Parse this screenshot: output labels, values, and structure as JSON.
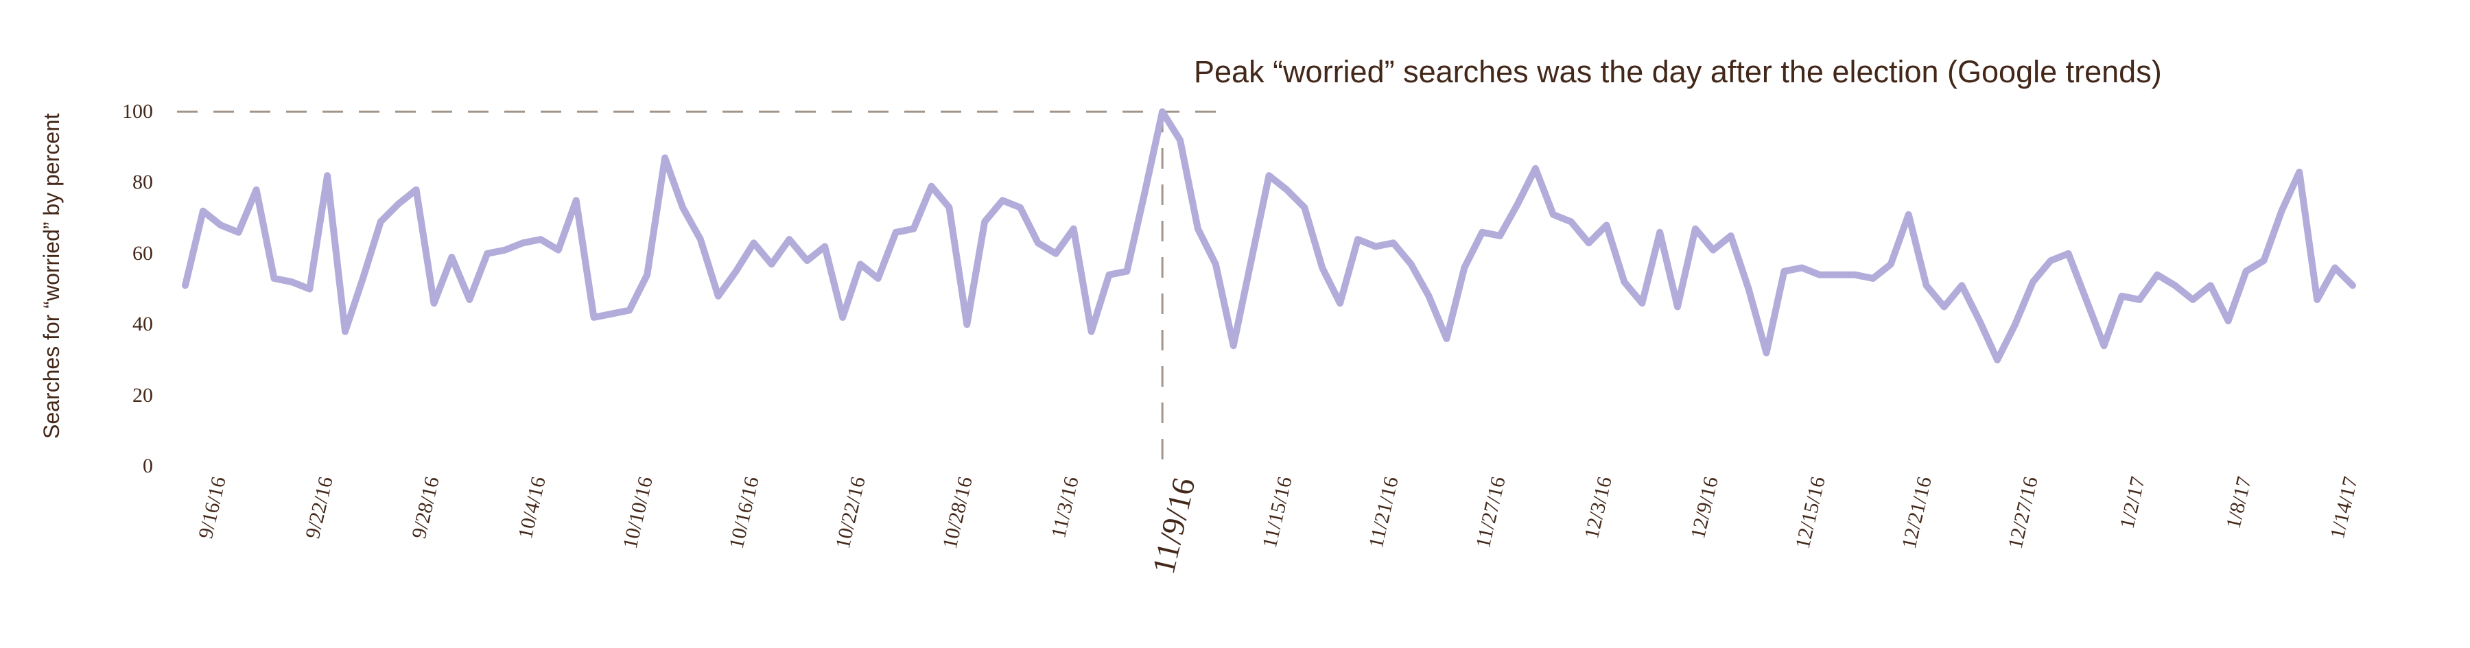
{
  "title": "Peak “worried” searches was the day after the election (Google trends)",
  "y_axis": {
    "label": "Searches for “worried” by percent",
    "tick_values": [
      0,
      20,
      40,
      60,
      80,
      100
    ],
    "range": [
      0,
      100
    ]
  },
  "x_axis": {
    "ticks": [
      {
        "label": "9/16/16",
        "index": 1
      },
      {
        "label": "9/22/16",
        "index": 7
      },
      {
        "label": "9/28/16",
        "index": 13
      },
      {
        "label": "10/4/16",
        "index": 19
      },
      {
        "label": "10/10/16",
        "index": 25
      },
      {
        "label": "10/16/16",
        "index": 31
      },
      {
        "label": "10/22/16",
        "index": 37
      },
      {
        "label": "10/28/16",
        "index": 43
      },
      {
        "label": "11/3/16",
        "index": 49
      },
      {
        "label": "11/9/16",
        "index": 55,
        "emphasized": true
      },
      {
        "label": "11/15/16",
        "index": 61
      },
      {
        "label": "11/21/16",
        "index": 67
      },
      {
        "label": "11/27/16",
        "index": 73
      },
      {
        "label": "12/3/16",
        "index": 79
      },
      {
        "label": "12/9/16",
        "index": 85
      },
      {
        "label": "12/15/16",
        "index": 91
      },
      {
        "label": "12/21/16",
        "index": 97
      },
      {
        "label": "12/27/16",
        "index": 103
      },
      {
        "label": "1/2/17",
        "index": 109
      },
      {
        "label": "1/8/17",
        "index": 115
      },
      {
        "label": "1/14/17",
        "index": 121
      }
    ]
  },
  "chart_data": {
    "type": "line",
    "title": "Peak “worried” searches was the day after the election (Google trends)",
    "xlabel": "",
    "ylabel": "Searches for “worried” by percent",
    "ylim": [
      0,
      100
    ],
    "x_unit": "daily",
    "x_start": "9/15/16",
    "x_end": "1/15/17",
    "grid": false,
    "legend": false,
    "annotations": {
      "h_dash_at_value": 100,
      "v_dash_at_index": 55,
      "v_dash_date": "11/9/16",
      "peak_value": 100,
      "peak_date": "11/9/16"
    },
    "series": [
      {
        "name": "Google Trends searches for “worried”",
        "values": [
          51,
          72,
          68,
          66,
          78,
          53,
          52,
          50,
          82,
          38,
          53,
          69,
          74,
          78,
          46,
          59,
          47,
          60,
          61,
          63,
          64,
          61,
          75,
          42,
          43,
          44,
          54,
          87,
          73,
          64,
          48,
          55,
          63,
          57,
          64,
          58,
          62,
          42,
          57,
          53,
          66,
          67,
          79,
          73,
          40,
          69,
          75,
          73,
          63,
          60,
          67,
          38,
          54,
          55,
          77,
          100,
          92,
          67,
          57,
          34,
          58,
          82,
          78,
          73,
          56,
          46,
          64,
          62,
          63,
          57,
          48,
          36,
          56,
          66,
          65,
          74,
          84,
          71,
          69,
          63,
          68,
          52,
          46,
          66,
          45,
          67,
          61,
          65,
          50,
          32,
          55,
          56,
          54,
          54,
          54,
          53,
          57,
          71,
          51,
          45,
          51,
          41,
          30,
          40,
          52,
          58,
          60,
          47,
          34,
          48,
          47,
          54,
          51,
          47,
          51,
          41,
          55,
          58,
          72,
          83,
          47,
          56,
          51
        ]
      }
    ]
  },
  "colors": {
    "line": "#b2acda",
    "dash": "#a29488",
    "text": "#43281a",
    "background": "#ffffff"
  }
}
